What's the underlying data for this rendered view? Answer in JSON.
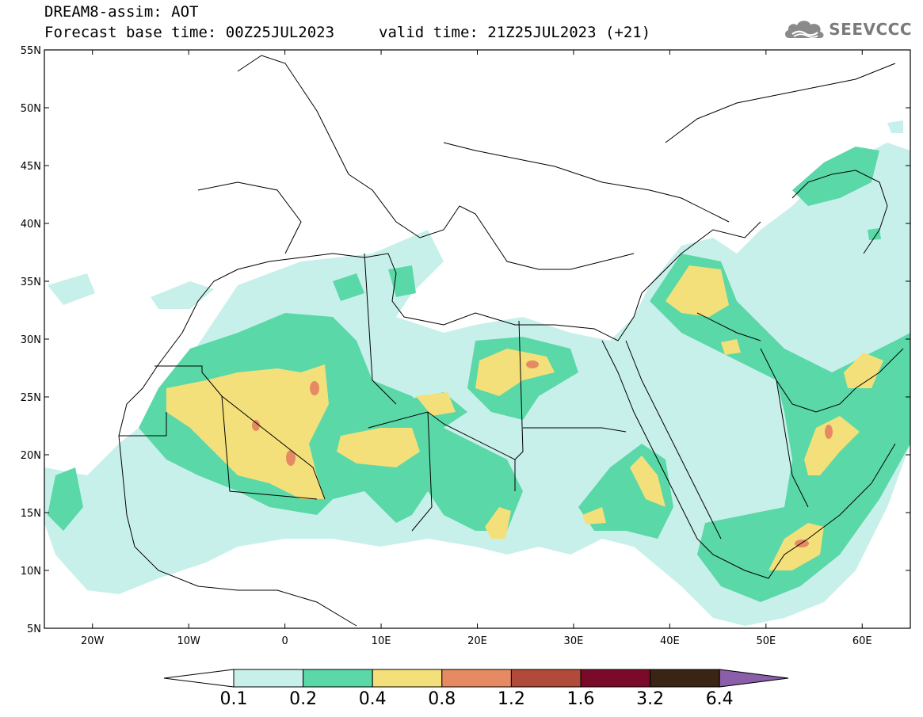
{
  "title": {
    "line1": "DREAM8-assim: AOT",
    "line2": "Forecast base time: 00Z25JUL2023",
    "valid": "valid time: 21Z25JUL2023 (+21)"
  },
  "logo": {
    "text": "SEEVCCC",
    "icon": "cloud-icon"
  },
  "axes": {
    "lon_range": [
      -25,
      65
    ],
    "lat_range": [
      5,
      55
    ],
    "lat_ticks": [
      {
        "v": 55,
        "label": "55N"
      },
      {
        "v": 50,
        "label": "50N"
      },
      {
        "v": 45,
        "label": "45N"
      },
      {
        "v": 40,
        "label": "40N"
      },
      {
        "v": 35,
        "label": "35N"
      },
      {
        "v": 30,
        "label": "30N"
      },
      {
        "v": 25,
        "label": "25N"
      },
      {
        "v": 20,
        "label": "20N"
      },
      {
        "v": 15,
        "label": "15N"
      },
      {
        "v": 10,
        "label": "10N"
      },
      {
        "v": 5,
        "label": "5N"
      }
    ],
    "lon_ticks": [
      {
        "v": -20,
        "label": "20W"
      },
      {
        "v": -10,
        "label": "10W"
      },
      {
        "v": 0,
        "label": "0"
      },
      {
        "v": 10,
        "label": "10E"
      },
      {
        "v": 20,
        "label": "20E"
      },
      {
        "v": 30,
        "label": "30E"
      },
      {
        "v": 40,
        "label": "40E"
      },
      {
        "v": 50,
        "label": "50E"
      },
      {
        "v": 60,
        "label": "60E"
      }
    ]
  },
  "colorbar": {
    "levels": [
      "0.1",
      "0.2",
      "0.4",
      "0.8",
      "1.2",
      "1.6",
      "3.2",
      "6.4"
    ],
    "colors": [
      "#c8f0ea",
      "#5ad8a8",
      "#f4e07a",
      "#e68a64",
      "#b04a3a",
      "#7a0a2a",
      "#3a2414",
      "#8a5ea8"
    ],
    "under_color": "#ffffff"
  },
  "colors": {
    "l1": "#c8f0ea",
    "l2": "#5ad8a8",
    "l3": "#f4e07a",
    "l4": "#e68a64"
  }
}
